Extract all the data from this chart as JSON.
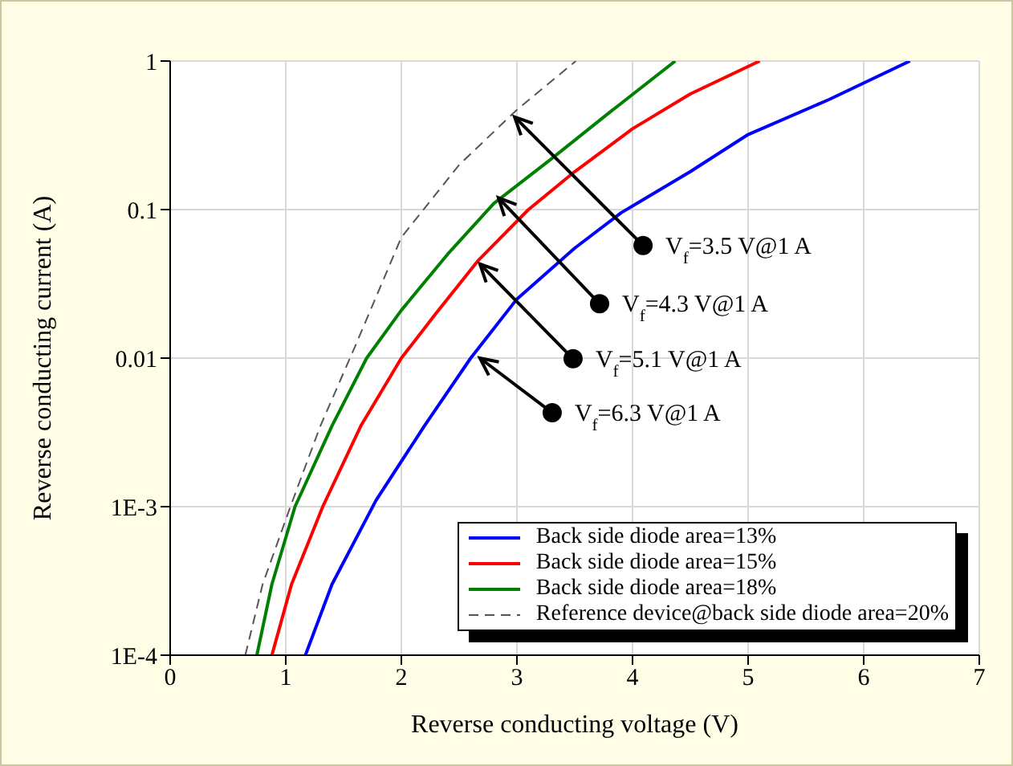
{
  "chart_data": {
    "type": "line",
    "xlabel": "Reverse conducting voltage (V)",
    "ylabel": "Reverse conducting current (A)",
    "xlim": [
      0,
      7
    ],
    "xticks": [
      0,
      1,
      2,
      3,
      4,
      5,
      6,
      7
    ],
    "ylim": [
      0.0001,
      1
    ],
    "yticks": [
      {
        "value": 0.0001,
        "label": "1E-4"
      },
      {
        "value": 0.001,
        "label": "1E-3"
      },
      0.01,
      0.1,
      1
    ],
    "log": "y",
    "grid": true,
    "legend": "bottom right",
    "marker": "none",
    "series": [
      {
        "name": "Back side diode area=13%",
        "color": "#0000ff",
        "line_style": "solid",
        "x": [
          1.17,
          1.4,
          1.78,
          2.2,
          2.6,
          3.0,
          3.5,
          3.9,
          4.5,
          5.0,
          5.7,
          6.4
        ],
        "values": [
          0.0001,
          0.0003,
          0.0011,
          0.0035,
          0.01,
          0.025,
          0.055,
          0.095,
          0.18,
          0.32,
          0.55,
          1
        ]
      },
      {
        "name": "Back side diode area=15%",
        "color": "#ff0000",
        "line_style": "solid",
        "x": [
          0.88,
          1.05,
          1.32,
          1.65,
          2.0,
          2.3,
          2.66,
          3.1,
          3.5,
          4.0,
          4.5,
          5.1
        ],
        "values": [
          0.0001,
          0.0003,
          0.001,
          0.0035,
          0.01,
          0.02,
          0.045,
          0.1,
          0.18,
          0.35,
          0.6,
          1
        ]
      },
      {
        "name": "Back side diode area=18%",
        "color": "#008000",
        "line_style": "solid",
        "x": [
          0.75,
          0.88,
          1.08,
          1.4,
          1.7,
          2.0,
          2.4,
          2.8,
          3.3,
          3.8,
          4.37
        ],
        "values": [
          0.0001,
          0.0003,
          0.001,
          0.0035,
          0.01,
          0.021,
          0.05,
          0.11,
          0.22,
          0.45,
          1
        ]
      },
      {
        "name": "Reference device@back side diode area=20%",
        "color": "#555555",
        "line_style": "dashed",
        "x": [
          0.65,
          0.8,
          1.04,
          1.3,
          1.6,
          2.0,
          2.5,
          3.0,
          3.51
        ],
        "values": [
          0.0001,
          0.0003,
          0.001,
          0.0035,
          0.012,
          0.065,
          0.2,
          0.47,
          1
        ]
      }
    ],
    "annotations": [
      {
        "text": "V$_{f}$=3.5 V@1 A",
        "x": 2.98,
        "y": 0.42
      },
      {
        "text": "V$_{f}$=4.3 V@1 A",
        "x": 2.84,
        "y": 0.12
      },
      {
        "text": "V$_{f}$=5.1 V@1 A",
        "x": 2.68,
        "y": 0.043
      },
      {
        "text": "V$_{f}$=6.3 V@1 A",
        "x": 2.68,
        "y": 0.01
      }
    ]
  }
}
